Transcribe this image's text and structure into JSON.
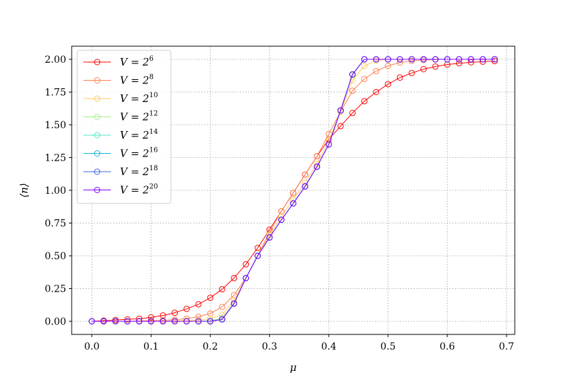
{
  "chart_data": {
    "type": "line",
    "title": "",
    "xlabel": "μ",
    "ylabel": "⟨n⟩",
    "xlim": [
      -0.034,
      0.714
    ],
    "ylim": [
      -0.1,
      2.1
    ],
    "xticks": [
      0.0,
      0.1,
      0.2,
      0.3,
      0.4,
      0.5,
      0.6,
      0.7
    ],
    "xtick_labels": [
      "0.0",
      "0.1",
      "0.2",
      "0.3",
      "0.4",
      "0.5",
      "0.6",
      "0.7"
    ],
    "yticks": [
      0.0,
      0.25,
      0.5,
      0.75,
      1.0,
      1.25,
      1.5,
      1.75,
      2.0
    ],
    "ytick_labels": [
      "0.00",
      "0.25",
      "0.50",
      "0.75",
      "1.00",
      "1.25",
      "1.50",
      "1.75",
      "2.00"
    ],
    "grid": true,
    "legend_position": "top-left",
    "marker": "open-circle",
    "x": [
      0.0,
      0.02,
      0.04,
      0.06,
      0.08,
      0.1,
      0.12,
      0.14,
      0.16,
      0.18,
      0.2,
      0.22,
      0.24,
      0.26,
      0.28,
      0.3,
      0.32,
      0.34,
      0.36,
      0.38,
      0.4,
      0.42,
      0.44,
      0.46,
      0.48,
      0.5,
      0.52,
      0.54,
      0.56,
      0.58,
      0.6,
      0.62,
      0.64,
      0.66,
      0.68
    ],
    "series": [
      {
        "name": "V = 2^6",
        "base": "V = 2",
        "exp": "6",
        "color": "#ff0000",
        "values": [
          0.0,
          0.005,
          0.01,
          0.015,
          0.02,
          0.03,
          0.045,
          0.065,
          0.095,
          0.13,
          0.18,
          0.245,
          0.33,
          0.435,
          0.56,
          0.7,
          0.84,
          0.98,
          1.12,
          1.26,
          1.39,
          1.49,
          1.59,
          1.68,
          1.75,
          1.81,
          1.86,
          1.895,
          1.925,
          1.945,
          1.96,
          1.97,
          1.977,
          1.982,
          1.986
        ]
      },
      {
        "name": "V = 2^8",
        "base": "V = 2",
        "exp": "8",
        "color": "#ff7f50",
        "values": [
          0.0,
          0.0,
          0.0,
          0.0,
          0.003,
          0.005,
          0.008,
          0.012,
          0.02,
          0.035,
          0.06,
          0.11,
          0.2,
          0.33,
          0.5,
          0.68,
          0.84,
          0.98,
          1.12,
          1.26,
          1.43,
          1.6,
          1.76,
          1.85,
          1.91,
          1.95,
          1.975,
          1.988,
          1.995,
          1.998,
          2.0,
          2.0,
          2.0,
          2.0,
          2.0
        ]
      },
      {
        "name": "V = 2^10",
        "base": "V = 2",
        "exp": "10",
        "color": "#ffc864",
        "values": [
          0.0,
          0.0,
          0.0,
          0.0,
          0.0,
          0.0,
          0.0,
          0.003,
          0.005,
          0.01,
          0.02,
          0.05,
          0.16,
          0.33,
          0.5,
          0.66,
          0.8,
          0.93,
          1.06,
          1.2,
          1.38,
          1.6,
          1.84,
          1.95,
          1.99,
          2.0,
          2.0,
          2.0,
          2.0,
          2.0,
          2.0,
          2.0,
          2.0,
          2.0,
          2.0
        ]
      },
      {
        "name": "V = 2^12",
        "base": "V = 2",
        "exp": "12",
        "color": "#a0f08c",
        "values": [
          0.0,
          0.0,
          0.0,
          0.0,
          0.0,
          0.0,
          0.0,
          0.0,
          0.0,
          0.002,
          0.005,
          0.025,
          0.14,
          0.33,
          0.5,
          0.64,
          0.775,
          0.9,
          1.03,
          1.18,
          1.35,
          1.61,
          1.88,
          2.0,
          2.0,
          2.0,
          2.0,
          2.0,
          2.0,
          2.0,
          2.0,
          2.0,
          2.0,
          2.0,
          2.0
        ]
      },
      {
        "name": "V = 2^14",
        "base": "V = 2",
        "exp": "14",
        "color": "#50e6c8",
        "values": [
          0.0,
          0.0,
          0.0,
          0.0,
          0.0,
          0.0,
          0.0,
          0.0,
          0.0,
          0.0,
          0.0,
          0.015,
          0.135,
          0.33,
          0.5,
          0.64,
          0.775,
          0.9,
          1.03,
          1.18,
          1.35,
          1.61,
          1.885,
          2.0,
          2.0,
          2.0,
          2.0,
          2.0,
          2.0,
          2.0,
          2.0,
          2.0,
          2.0,
          2.0,
          2.0
        ]
      },
      {
        "name": "V = 2^16",
        "base": "V = 2",
        "exp": "16",
        "color": "#14b4d2",
        "values": [
          0.0,
          0.0,
          0.0,
          0.0,
          0.0,
          0.0,
          0.0,
          0.0,
          0.0,
          0.0,
          0.0,
          0.015,
          0.135,
          0.33,
          0.5,
          0.64,
          0.775,
          0.9,
          1.03,
          1.18,
          1.35,
          1.61,
          1.885,
          2.0,
          2.0,
          2.0,
          2.0,
          2.0,
          2.0,
          2.0,
          2.0,
          2.0,
          2.0,
          2.0,
          2.0
        ]
      },
      {
        "name": "V = 2^18",
        "base": "V = 2",
        "exp": "18",
        "color": "#3c64dc",
        "values": [
          0.0,
          0.0,
          0.0,
          0.0,
          0.0,
          0.0,
          0.0,
          0.0,
          0.0,
          0.0,
          0.0,
          0.015,
          0.135,
          0.33,
          0.5,
          0.64,
          0.775,
          0.9,
          1.03,
          1.18,
          1.35,
          1.61,
          1.885,
          2.0,
          2.0,
          2.0,
          2.0,
          2.0,
          2.0,
          2.0,
          2.0,
          2.0,
          2.0,
          2.0,
          2.0
        ]
      },
      {
        "name": "V = 2^20",
        "base": "V = 2",
        "exp": "20",
        "color": "#8000ff",
        "values": [
          0.0,
          0.0,
          0.0,
          0.0,
          0.0,
          0.0,
          0.0,
          0.0,
          0.0,
          0.0,
          0.0,
          0.015,
          0.135,
          0.33,
          0.5,
          0.64,
          0.775,
          0.9,
          1.03,
          1.18,
          1.35,
          1.61,
          1.885,
          2.0,
          2.0,
          2.0,
          2.0,
          2.0,
          2.0,
          2.0,
          2.0,
          2.0,
          2.0,
          2.0,
          2.0
        ]
      }
    ]
  }
}
